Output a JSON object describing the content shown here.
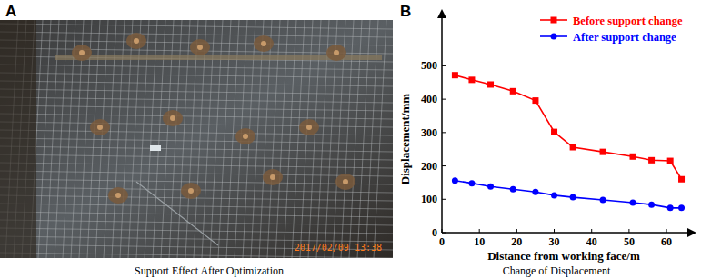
{
  "figure": {
    "panels": [
      {
        "label": "A",
        "caption": "Support Effect After Optimization",
        "timestamp": "2017/02/09 13:38"
      },
      {
        "label": "B"
      }
    ]
  },
  "chart_data": {
    "type": "line",
    "title": "Change of Displacement",
    "x_label": "Distance from working face/m",
    "y_label": "Displacement/mm",
    "x": [
      3.5,
      8,
      13,
      19,
      25,
      30,
      35,
      43,
      51,
      56,
      61,
      64
    ],
    "series": [
      {
        "name": "Before support change",
        "color": "#ff0000",
        "marker": "square",
        "values": [
          472,
          458,
          444,
          424,
          396,
          302,
          256,
          242,
          228,
          217,
          215,
          160
        ]
      },
      {
        "name": "After support change",
        "color": "#0000ff",
        "marker": "circle",
        "values": [
          156,
          148,
          138,
          130,
          122,
          112,
          106,
          98,
          90,
          84,
          74,
          74
        ]
      }
    ],
    "xlim": [
      0,
      68
    ],
    "xticks": [
      0,
      10,
      20,
      30,
      40,
      50,
      60
    ],
    "ylim": [
      0,
      670
    ],
    "yticks": [
      0,
      100,
      200,
      300,
      400,
      500
    ],
    "grid": false,
    "legend": "upper right"
  }
}
